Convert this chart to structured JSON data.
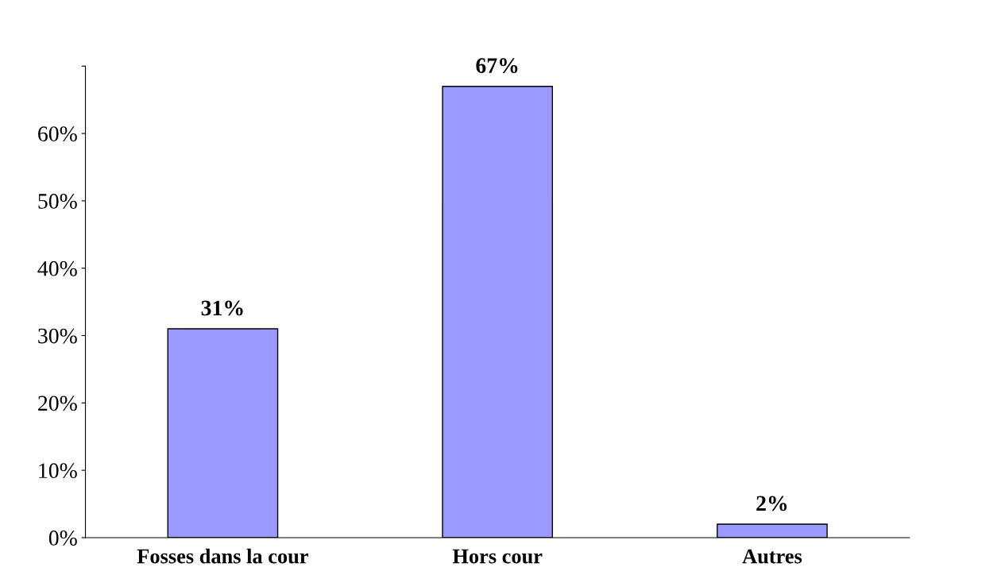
{
  "chart_data": {
    "type": "bar",
    "categories": [
      "Fosses dans la cour",
      "Hors cour",
      "Autres"
    ],
    "values": [
      31,
      67,
      2
    ],
    "color": "#9999ff",
    "value_labels": [
      "31%",
      "67%",
      "2%"
    ],
    "ylim": [
      0,
      70
    ],
    "yticks": [
      {
        "value": 0,
        "label": "0%"
      },
      {
        "value": 10,
        "label": "10%"
      },
      {
        "value": 20,
        "label": "20%"
      },
      {
        "value": 30,
        "label": "30%"
      },
      {
        "value": 40,
        "label": "40%"
      },
      {
        "value": 50,
        "label": "50%"
      },
      {
        "value": 60,
        "label": "60%"
      },
      {
        "value": 70,
        "label": null
      }
    ],
    "grid": false
  }
}
